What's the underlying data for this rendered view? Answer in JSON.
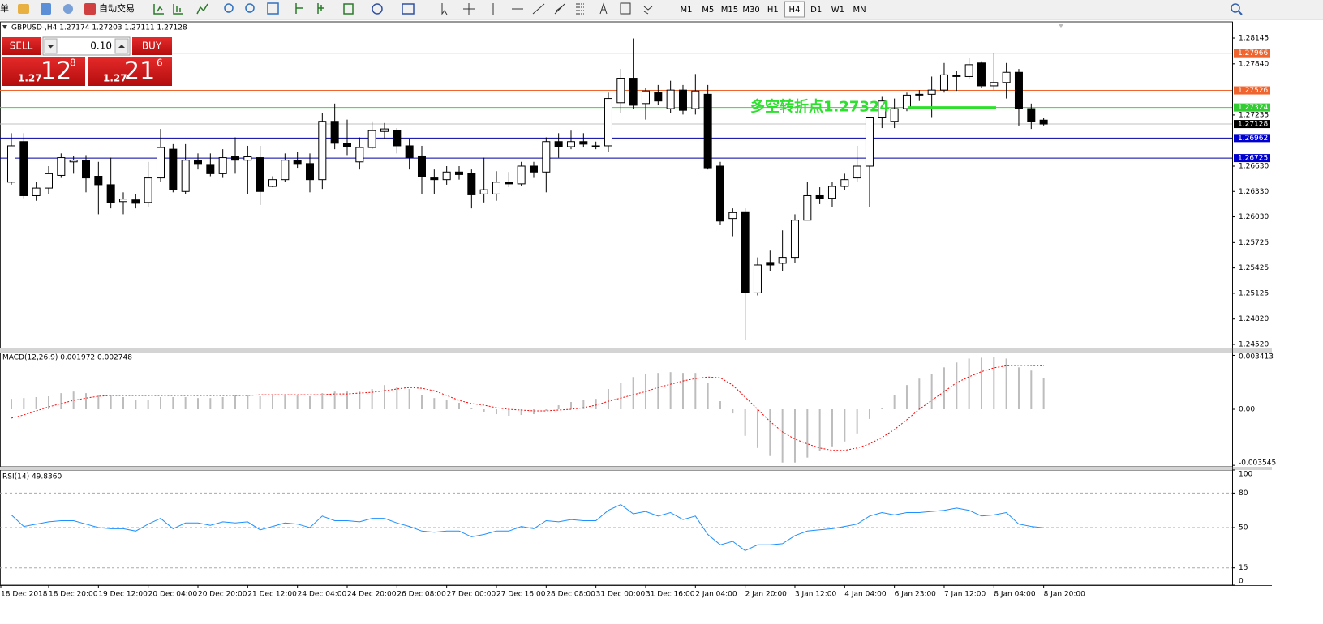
{
  "toolbar": {
    "menu_fragment": "单",
    "auto_trading": "自动交易",
    "timeframes": [
      "M1",
      "M5",
      "M15",
      "M30",
      "H1",
      "H4",
      "D1",
      "W1",
      "MN"
    ],
    "active_timeframe": "H4"
  },
  "trade_panel": {
    "sell": "SELL",
    "buy": "BUY",
    "lot": "0.10",
    "bid": {
      "big_figure": "1.27",
      "pips": "12",
      "fraction": "8"
    },
    "ask": {
      "big_figure": "1.27",
      "pips": "21",
      "fraction": "6"
    }
  },
  "chart_data": [
    {
      "type": "candlestick",
      "title": "GBPUSD-,H4  1.27174 1.27203 1.27111 1.27128",
      "up_color": "#ffffff",
      "down_color": "#000000",
      "open": [
        1.2644,
        1.2692,
        1.2628,
        1.2637,
        1.2652,
        1.2668,
        1.267,
        1.2651,
        1.2641,
        1.2621,
        1.2623,
        1.262,
        1.2649,
        1.2683,
        1.2633,
        1.267,
        1.2665,
        1.2654,
        1.2674,
        1.267,
        1.2673,
        1.2639,
        1.2647,
        1.267,
        1.2666,
        1.2647,
        1.2716,
        1.269,
        1.2668,
        1.2685,
        1.2704,
        1.2705,
        1.2687,
        1.2675,
        1.2649,
        1.2647,
        1.2656,
        1.2654,
        1.263,
        1.263,
        1.2644,
        1.2642,
        1.2663,
        1.2656,
        1.2692,
        1.2686,
        1.2692,
        1.2687,
        1.2687,
        1.2738,
        1.2767,
        1.2737,
        1.275,
        1.2731,
        1.2753,
        1.2731,
        1.2748,
        1.2663,
        1.2601,
        1.2609,
        1.2513,
        1.2549,
        1.2548,
        1.2555,
        1.2599,
        1.2628,
        1.2625,
        1.2639,
        1.2649,
        1.2663,
        1.2721,
        1.2716,
        1.2731,
        1.2748,
        1.2748,
        1.2753,
        1.277,
        1.2769,
        1.2785,
        1.2758,
        1.2762,
        1.2774,
        1.2731,
        1.27174
      ],
      "high": [
        1.2702,
        1.2702,
        1.2644,
        1.2663,
        1.2678,
        1.2675,
        1.2676,
        1.2668,
        1.2673,
        1.2632,
        1.263,
        1.2668,
        1.2707,
        1.2689,
        1.2689,
        1.2678,
        1.2678,
        1.2683,
        1.2697,
        1.2687,
        1.2687,
        1.2651,
        1.2678,
        1.268,
        1.2678,
        1.2726,
        1.2737,
        1.2718,
        1.2697,
        1.2716,
        1.2714,
        1.2708,
        1.2695,
        1.2687,
        1.2659,
        1.2663,
        1.2663,
        1.2659,
        1.2673,
        1.2657,
        1.2656,
        1.2668,
        1.2668,
        1.2697,
        1.2702,
        1.2705,
        1.2702,
        1.2692,
        1.275,
        1.2778,
        1.2814,
        1.2756,
        1.2759,
        1.2764,
        1.2759,
        1.2772,
        1.2759,
        1.2668,
        1.2613,
        1.2613,
        1.2555,
        1.2563,
        1.2587,
        1.2606,
        1.2644,
        1.2638,
        1.2644,
        1.2654,
        1.2687,
        1.2721,
        1.2745,
        1.2743,
        1.275,
        1.2753,
        1.2769,
        1.2785,
        1.2776,
        1.2791,
        1.2787,
        1.2797,
        1.2785,
        1.2778,
        1.2737,
        1.27203
      ],
      "low": [
        1.2641,
        1.2625,
        1.2622,
        1.263,
        1.2649,
        1.2654,
        1.2632,
        1.2606,
        1.2613,
        1.2606,
        1.2613,
        1.2615,
        1.2644,
        1.2632,
        1.263,
        1.2659,
        1.2651,
        1.2649,
        1.2654,
        1.263,
        1.2617,
        1.2638,
        1.2644,
        1.2661,
        1.2632,
        1.2636,
        1.2683,
        1.2676,
        1.2659,
        1.2683,
        1.2695,
        1.2678,
        1.2659,
        1.263,
        1.263,
        1.2641,
        1.2647,
        1.2613,
        1.262,
        1.2622,
        1.2638,
        1.2639,
        1.2649,
        1.2632,
        1.2673,
        1.2683,
        1.2685,
        1.2683,
        1.268,
        1.2726,
        1.2731,
        1.2718,
        1.2735,
        1.2726,
        1.2724,
        1.2724,
        1.2659,
        1.2593,
        1.258,
        1.2457,
        1.251,
        1.2539,
        1.2539,
        1.2548,
        1.2599,
        1.2618,
        1.2615,
        1.2635,
        1.2644,
        1.2615,
        1.2708,
        1.2708,
        1.2728,
        1.274,
        1.2721,
        1.275,
        1.2752,
        1.2766,
        1.2756,
        1.2753,
        1.2743,
        1.2711,
        1.2707,
        1.27111
      ],
      "close": [
        1.2687,
        1.2628,
        1.2637,
        1.2654,
        1.2673,
        1.267,
        1.2649,
        1.2641,
        1.262,
        1.2624,
        1.2619,
        1.2649,
        1.2685,
        1.2635,
        1.267,
        1.2666,
        1.2654,
        1.2673,
        1.267,
        1.2674,
        1.2633,
        1.2647,
        1.267,
        1.2666,
        1.2647,
        1.2716,
        1.269,
        1.2686,
        1.2685,
        1.2705,
        1.2707,
        1.2687,
        1.2673,
        1.2651,
        1.2647,
        1.2656,
        1.2653,
        1.2629,
        1.2635,
        1.2644,
        1.2642,
        1.2663,
        1.2656,
        1.2692,
        1.2686,
        1.2692,
        1.2689,
        1.2687,
        1.2743,
        1.2767,
        1.2735,
        1.2752,
        1.274,
        1.2753,
        1.2729,
        1.2752,
        1.2661,
        1.2598,
        1.2608,
        1.2513,
        1.2546,
        1.2546,
        1.2555,
        1.2599,
        1.2628,
        1.2625,
        1.2639,
        1.2647,
        1.2663,
        1.2721,
        1.274,
        1.2731,
        1.2747,
        1.2748,
        1.2753,
        1.2771,
        1.277,
        1.2783,
        1.2758,
        1.2762,
        1.2774,
        1.2731,
        1.2716,
        1.27128
      ],
      "ylim": [
        1.24472,
        1.28337
      ],
      "yticks": [
        1.28145,
        {
          "value": 1.2784,
          "label": "1.27840"
        },
        1.27235,
        {
          "value": 1.2663,
          "label": "1.26630"
        },
        {
          "value": 1.2633,
          "label": "1.26330"
        },
        {
          "value": 1.2603,
          "label": "1.26030"
        },
        1.25725,
        1.25425,
        1.25125,
        {
          "value": 1.2482,
          "label": "1.24820"
        },
        {
          "value": 1.2452,
          "label": "1.24520"
        }
      ],
      "levels": [
        {
          "value": 1.27966,
          "color": "#f0642d",
          "label_color": "#f0642d"
        },
        {
          "value": 1.27526,
          "color": "#f0642d",
          "label_color": "#f0642d"
        },
        {
          "value": 1.27324,
          "color": "#33dd33",
          "label_color": "#33cc33"
        },
        {
          "value": 1.27128,
          "color": "#c0c0c0",
          "label_color": "#000000"
        },
        {
          "value": 1.26962,
          "color": "#0000a0",
          "label_color": "#0000d0"
        },
        {
          "value": 1.26725,
          "color": "#0000a0",
          "label_color": "#0000d0"
        }
      ],
      "annotation": {
        "text": "多空转折点1.27324",
        "color": "#2ee02e"
      },
      "x_labels": [
        "18 Dec 2018",
        "18 Dec 20:00",
        "19 Dec 12:00",
        "20 Dec 04:00",
        "20 Dec 20:00",
        "21 Dec 12:00",
        "24 Dec 04:00",
        "24 Dec 20:00",
        "26 Dec 08:00",
        "27 Dec 00:00",
        "27 Dec 16:00",
        "28 Dec 08:00",
        "31 Dec 00:00",
        "31 Dec 16:00",
        "2 Jan 04:00",
        "2 Jan 20:00",
        "3 Jan 12:00",
        "4 Jan 04:00",
        "6 Jan 23:00",
        "7 Jan 12:00",
        "8 Jan 04:00",
        "8 Jan 20:00"
      ]
    },
    {
      "type": "macd",
      "title": "MACD(12,26,9) 0.001972 0.002748",
      "histogram_color": "#bdbdbd",
      "signal_color": "#ff0000",
      "histogram": [
        0.00066,
        0.00071,
        0.00077,
        0.00082,
        0.00102,
        0.00112,
        0.00102,
        0.00092,
        0.00087,
        0.00077,
        0.00061,
        0.00061,
        0.00077,
        0.00077,
        0.00077,
        0.00071,
        0.00071,
        0.00077,
        0.00087,
        0.00092,
        0.00082,
        0.00087,
        0.00092,
        0.00087,
        0.00082,
        0.00102,
        0.00112,
        0.00112,
        0.00112,
        0.00128,
        0.00153,
        0.00143,
        0.00128,
        0.00092,
        0.00071,
        0.00061,
        0.00041,
        0.0001,
        -0.0002,
        -0.00031,
        -0.00041,
        -0.00036,
        -0.00031,
        -0.0001,
        0.00026,
        0.00046,
        0.00061,
        0.00066,
        0.00128,
        0.00168,
        0.00204,
        0.00224,
        0.0023,
        0.00235,
        0.0023,
        0.0023,
        0.00168,
        0.00051,
        -0.00026,
        -0.00168,
        -0.00245,
        -0.00296,
        -0.00337,
        -0.00337,
        -0.00306,
        -0.00265,
        -0.00235,
        -0.00204,
        -0.00153,
        -0.00061,
        0.0001,
        0.00092,
        0.00153,
        0.00194,
        0.00224,
        0.00265,
        0.00296,
        0.00321,
        0.00326,
        0.00332,
        0.00321,
        0.00265,
        0.00245,
        0.001972
      ],
      "signal": [
        -0.00056,
        -0.00036,
        -0.0001,
        0.00015,
        0.00036,
        0.00056,
        0.00071,
        0.00082,
        0.00087,
        0.00087,
        0.00087,
        0.00087,
        0.00087,
        0.00087,
        0.00087,
        0.00087,
        0.00087,
        0.00087,
        0.00087,
        0.00087,
        0.00092,
        0.00092,
        0.00092,
        0.00092,
        0.00092,
        0.00092,
        0.00097,
        0.00097,
        0.00102,
        0.00107,
        0.00117,
        0.00128,
        0.00138,
        0.00133,
        0.00117,
        0.00087,
        0.00056,
        0.00036,
        0.00026,
        0.0001,
        0,
        -5e-05,
        -0.0001,
        -0.0001,
        -5e-05,
        0,
        0.0001,
        0.00026,
        0.00051,
        0.00071,
        0.00092,
        0.00112,
        0.00138,
        0.00158,
        0.00179,
        0.00194,
        0.00204,
        0.00199,
        0.00153,
        0.00077,
        0,
        -0.00077,
        -0.00143,
        -0.00189,
        -0.00219,
        -0.00245,
        -0.0026,
        -0.0026,
        -0.00245,
        -0.00219,
        -0.00179,
        -0.00128,
        -0.00066,
        0,
        0.00056,
        0.00112,
        0.00168,
        0.00205,
        0.00238,
        0.00262,
        0.00275,
        0.00278,
        0.00277,
        0.002748
      ],
      "ylim": [
        -0.00364,
        0.00359
      ],
      "yticks": [
        0.003413,
        {
          "value": 0,
          "label": "0.00"
        },
        -0.003545
      ]
    },
    {
      "type": "line",
      "title": "RSI(14) 49.8360",
      "color": "#1e90ff",
      "values": [
        61,
        51,
        53,
        55,
        56,
        56,
        53,
        50,
        49,
        49,
        47,
        53,
        58,
        49,
        54,
        54,
        52,
        55,
        54,
        55,
        48,
        51,
        54,
        53,
        50,
        60,
        56,
        56,
        55,
        58,
        58,
        54,
        51,
        47,
        46,
        47,
        47,
        42,
        44,
        47,
        47,
        51,
        49,
        56,
        55,
        57,
        56,
        56,
        65,
        70,
        62,
        64,
        60,
        63,
        57,
        60,
        44,
        35,
        38,
        30,
        35,
        35,
        36,
        43,
        47,
        48,
        49,
        51,
        53,
        60,
        63,
        61,
        63,
        63,
        64,
        65,
        67,
        65,
        60,
        61,
        63,
        53,
        51,
        49.836
      ],
      "ylim": [
        0,
        100
      ],
      "yticks": [
        100,
        80,
        50,
        15,
        0
      ],
      "levels": [
        80,
        50,
        15
      ]
    }
  ]
}
